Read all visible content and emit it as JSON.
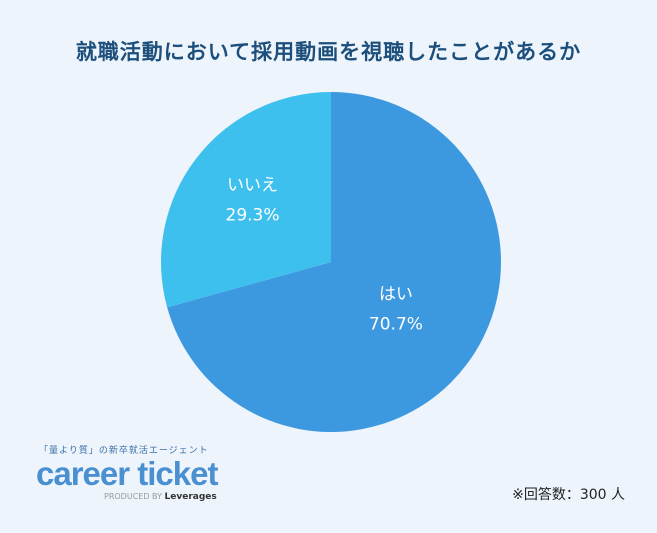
{
  "title": "就職活動において採用動画を視聴したことがあるか",
  "chart_data": {
    "type": "pie",
    "title": "就職活動において採用動画を視聴したことがあるか",
    "categories": [
      "はい",
      "いいえ"
    ],
    "values": [
      70.7,
      29.3
    ],
    "value_labels": [
      "70.7%",
      "29.3%"
    ],
    "colors": [
      "#3d99df",
      "#3ec0ee"
    ],
    "start": "top",
    "direction": "clockwise"
  },
  "logo": {
    "tagline": "「量より質」の新卒就活エージェント",
    "brand": "career ticket",
    "produced_by": "PRODUCED BY",
    "company": "Leverages"
  },
  "note": "※回答数：300 人"
}
